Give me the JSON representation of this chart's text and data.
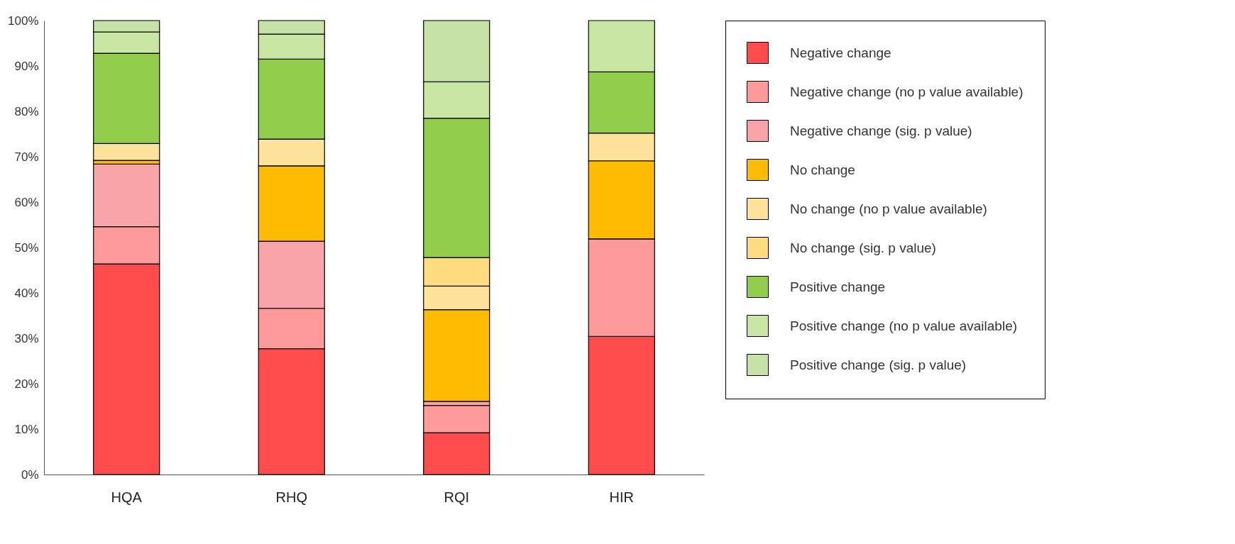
{
  "chart_data": {
    "type": "bar",
    "stacked": true,
    "categories": [
      "HQA",
      "RHQ",
      "RQI",
      "HIR"
    ],
    "ylim": [
      0,
      100
    ],
    "yticks": [
      {
        "value": 0,
        "label": "0%"
      },
      {
        "value": 10,
        "label": "10%"
      },
      {
        "value": 20,
        "label": "20%"
      },
      {
        "value": 30,
        "label": "30%"
      },
      {
        "value": 40,
        "label": "40%"
      },
      {
        "value": 50,
        "label": "50%"
      },
      {
        "value": 60,
        "label": "60%"
      },
      {
        "value": 70,
        "label": "70%"
      },
      {
        "value": 80,
        "label": "80%"
      },
      {
        "value": 90,
        "label": "90%"
      },
      {
        "value": 100,
        "label": "100%"
      }
    ],
    "grid": false,
    "legend": "right",
    "series": [
      {
        "name": "Negative change",
        "color": "#ff4b4b",
        "values": [
          46.4,
          27.7,
          9.2,
          30.4
        ]
      },
      {
        "name": "Negative change (no p value available)",
        "color": "#ff9a9a",
        "values": [
          8.2,
          8.9,
          6.0,
          21.5
        ]
      },
      {
        "name": "Negative change (sig. p value)",
        "color": "#f7a3a8",
        "values": [
          13.8,
          14.8,
          0.9,
          0
        ]
      },
      {
        "name": "No change",
        "color": "#ffbb00",
        "values": [
          0.8,
          16.6,
          20.2,
          17.2
        ]
      },
      {
        "name": "No change (no p value available)",
        "color": "#ffe29a",
        "values": [
          3.7,
          5.9,
          5.2,
          6.1
        ]
      },
      {
        "name": "No change (sig. p value)",
        "color": "#ffdc80",
        "values": [
          0,
          0,
          6.3,
          0
        ]
      },
      {
        "name": "Positive change",
        "color": "#92cd4c",
        "values": [
          19.9,
          17.6,
          30.7,
          13.5
        ]
      },
      {
        "name": "Positive change (no p value available)",
        "color": "#c8e6a2",
        "values": [
          4.7,
          5.5,
          8.0,
          11.3
        ]
      },
      {
        "name": "Positive change (sig. p value)",
        "color": "#c6e2a6",
        "values": [
          2.5,
          3.0,
          13.5,
          0
        ]
      }
    ]
  }
}
